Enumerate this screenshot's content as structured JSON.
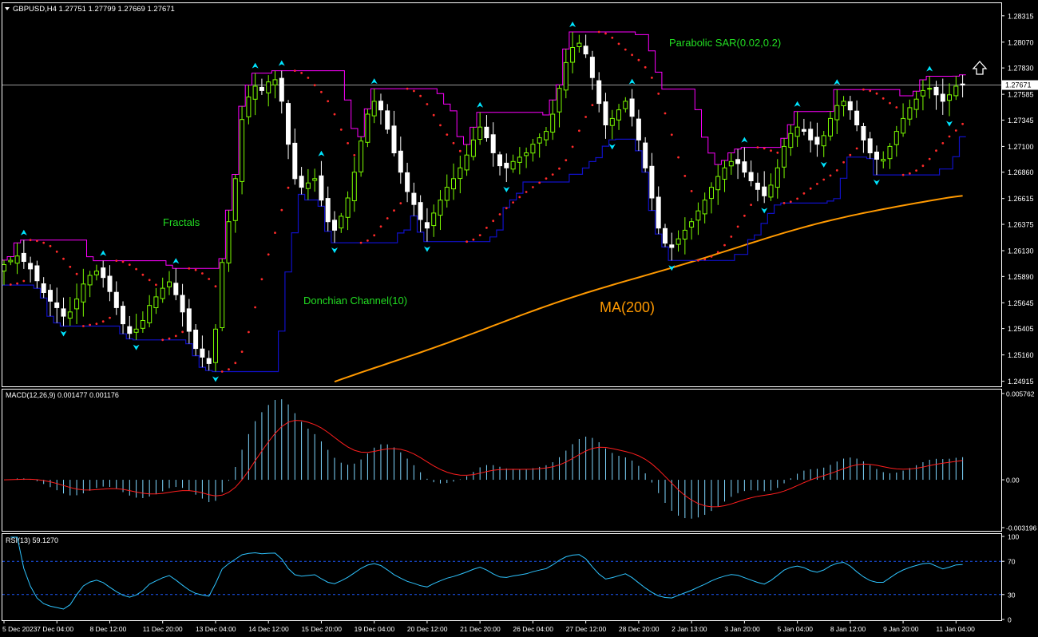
{
  "chart_data": {
    "type": "candlestick",
    "symbol_header": "GBPUSD,H4  1.27751 1.27799 1.27669 1.27671",
    "current_price": "1.27671",
    "colors": {
      "background": "#000000",
      "frame": "#ffffff",
      "candle": "#ffffff",
      "bull_candle_fill": "#000000",
      "bear_candle_fill": "#ffffff",
      "candle_bull_accent": "#7CFC00",
      "donchian": "#1010c8",
      "donchian_upper": "#ff00ff",
      "sar": "#ff2a2a",
      "ma": "#ff9900",
      "fractal": "#00e5ff",
      "macd_hist": "#7fd7ff",
      "macd_signal": "#ff1e1e",
      "rsi": "#2ec4ff",
      "rsi_levels": "#1e5aff",
      "annotation_green": "#22dd22",
      "annotation_orange": "#ff9900",
      "price_line": "#9a9a9a"
    },
    "price_axis": {
      "ylim": [
        1.24875,
        1.28425
      ],
      "tick_labels": [
        "1.28315",
        "1.28070",
        "1.27830",
        "1.27585",
        "1.27345",
        "1.27100",
        "1.26860",
        "1.26615",
        "1.26375",
        "1.26130",
        "1.25890",
        "1.25645",
        "1.25405",
        "1.25160",
        "1.24915"
      ]
    },
    "time_axis": {
      "labels": [
        "5 Dec 2023",
        "7 Dec 04:00",
        "8 Dec 12:00",
        "11 Dec 20:00",
        "13 Dec 04:00",
        "14 Dec 12:00",
        "15 Dec 20:00",
        "19 Dec 04:00",
        "20 Dec 12:00",
        "21 Dec 20:00",
        "26 Dec 04:00",
        "27 Dec 12:00",
        "28 Dec 20:00",
        "2 Jan 13:00",
        "3 Jan 20:00",
        "5 Jan 04:00",
        "8 Jan 12:00",
        "9 Jan 20:00",
        "11 Jan 04:00"
      ],
      "label_candle_index": [
        0,
        8,
        16,
        24,
        32,
        40,
        48,
        56,
        64,
        72,
        80,
        88,
        96,
        104,
        112,
        120,
        128,
        136,
        144
      ]
    },
    "annotations": {
      "fractals": "Fractals",
      "donchian": "Donchian Channel(10)",
      "sar": "Parabolic SAR(0.02,0.2)",
      "ma": "MA(200)"
    },
    "candles_close": [
      1.26,
      1.2604,
      1.2608,
      1.2603,
      1.2596,
      1.2585,
      1.2574,
      1.2566,
      1.256,
      1.2552,
      1.2556,
      1.2568,
      1.2582,
      1.259,
      1.2594,
      1.2588,
      1.2575,
      1.256,
      1.2545,
      1.2536,
      1.254,
      1.2548,
      1.2562,
      1.257,
      1.2578,
      1.2584,
      1.2572,
      1.2556,
      1.2538,
      1.2522,
      1.2514,
      1.2508,
      1.254,
      1.2602,
      1.264,
      1.268,
      1.2735,
      1.2756,
      1.2766,
      1.2762,
      1.277,
      1.2772,
      1.2752,
      1.2712,
      1.268,
      1.2672,
      1.2676,
      1.268,
      1.266,
      1.264,
      1.2632,
      1.2645,
      1.2662,
      1.2686,
      1.2715,
      1.274,
      1.2752,
      1.2744,
      1.2726,
      1.2704,
      1.2686,
      1.2668,
      1.2656,
      1.2642,
      1.2634,
      1.2648,
      1.266,
      1.2672,
      1.268,
      1.269,
      1.2702,
      1.2716,
      1.2728,
      1.2718,
      1.2704,
      1.2692,
      1.269,
      1.2696,
      1.27,
      1.2704,
      1.2712,
      1.2718,
      1.2724,
      1.274,
      1.2764,
      1.2788,
      1.2802,
      1.2806,
      1.2796,
      1.2774,
      1.275,
      1.273,
      1.2736,
      1.2744,
      1.2752,
      1.2738,
      1.2716,
      1.269,
      1.2662,
      1.2634,
      1.262,
      1.2616,
      1.2624,
      1.2632,
      1.264,
      1.265,
      1.266,
      1.2672,
      1.2682,
      1.269,
      1.2696,
      1.2694,
      1.2686,
      1.2678,
      1.267,
      1.2664,
      1.2674,
      1.269,
      1.271,
      1.2722,
      1.2728,
      1.2724,
      1.2716,
      1.2712,
      1.272,
      1.2736,
      1.2748,
      1.2752,
      1.2744,
      1.273,
      1.2716,
      1.2704,
      1.2698,
      1.2698,
      1.271,
      1.2724,
      1.2736,
      1.2746,
      1.2754,
      1.2762,
      1.2764,
      1.2758,
      1.2752,
      1.2758,
      1.2766,
      1.2767
    ],
    "ma200_start_end": [
      1.249,
      1.2665
    ],
    "macd": {
      "label": "MACD(12,26,9) 0.001477 0.001176",
      "ylim": [
        -0.003196,
        0.005762
      ],
      "tick_labels": [
        "0.005762",
        "0.00",
        "-0.003196"
      ]
    },
    "rsi": {
      "label": "RSI(13) 59.1270",
      "ylim": [
        0,
        100
      ],
      "tick_labels": [
        "100",
        "70",
        "30",
        "0"
      ],
      "levels": [
        70,
        30
      ]
    }
  }
}
